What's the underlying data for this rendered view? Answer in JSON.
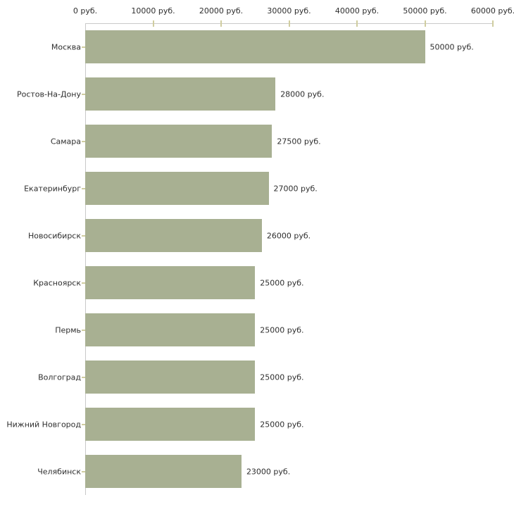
{
  "chart_data": {
    "type": "bar",
    "orientation": "horizontal",
    "categories": [
      "Москва",
      "Ростов-На-Дону",
      "Самара",
      "Екатеринбург",
      "Новосибирск",
      "Красноярск",
      "Пермь",
      "Волгоград",
      "Нижний Новгород",
      "Челябинск"
    ],
    "values": [
      50000,
      28000,
      27500,
      27000,
      26000,
      25000,
      25000,
      25000,
      25000,
      23000
    ],
    "value_labels": [
      "50000 руб.",
      "28000 руб.",
      "27500 руб.",
      "27000 руб.",
      "26000 руб.",
      "25000 руб.",
      "25000 руб.",
      "25000 руб.",
      "25000 руб.",
      "23000 руб."
    ],
    "unit": "руб.",
    "x_axis": {
      "position": "top",
      "min": 0,
      "max": 60000,
      "step": 10000,
      "tick_labels": [
        "0 руб.",
        "10000 руб.",
        "20000 руб.",
        "30000 руб.",
        "40000 руб.",
        "50000 руб.",
        "60000 руб."
      ]
    },
    "grid": false,
    "legend": false,
    "colors": {
      "bar": "#a8b092",
      "axis_line": "#c9c9c9",
      "tick": "#d0cda0",
      "text": "#2e2e2e",
      "background": "#ffffff"
    }
  }
}
